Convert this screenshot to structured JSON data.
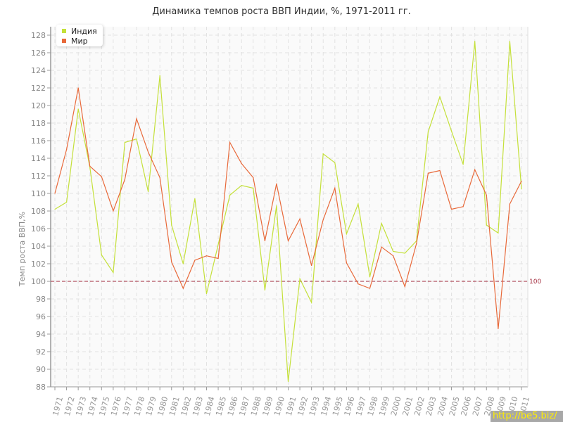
{
  "chart_data": {
    "type": "line",
    "title": "Динамика темпов роста ВВП Индии, %, 1971-2011 гг.",
    "xlabel": "",
    "ylabel": "Темп роста ВВП,%",
    "ylim": [
      88,
      128
    ],
    "ytick_step": 2,
    "grid": true,
    "legend_position": "top-left",
    "x": [
      1971,
      1972,
      1973,
      1974,
      1975,
      1976,
      1977,
      1978,
      1979,
      1980,
      1981,
      1982,
      1983,
      1984,
      1985,
      1986,
      1987,
      1988,
      1989,
      1990,
      1991,
      1992,
      1993,
      1994,
      1995,
      1996,
      1997,
      1998,
      1999,
      2000,
      2001,
      2002,
      2003,
      2004,
      2005,
      2006,
      2007,
      2008,
      2009,
      2010,
      2011
    ],
    "series": [
      {
        "name": "Индия",
        "color": "#c4e03a",
        "values": [
          108.2,
          109.0,
          119.6,
          113.0,
          103.0,
          101.0,
          115.8,
          116.2,
          110.2,
          123.4,
          106.4,
          102.0,
          109.4,
          98.6,
          104.2,
          109.8,
          110.9,
          110.6,
          99.0,
          108.6,
          88.6,
          100.3,
          97.6,
          114.5,
          113.5,
          105.4,
          108.8,
          100.5,
          106.6,
          103.4,
          103.2,
          104.6,
          117.0,
          121.0,
          117.1,
          113.3,
          127.3,
          106.4,
          105.5,
          127.3,
          110.5
        ]
      },
      {
        "name": "Мир",
        "color": "#e8693a",
        "values": [
          110.0,
          115.0,
          122.0,
          113.1,
          111.9,
          108.0,
          111.6,
          118.5,
          114.7,
          111.8,
          102.2,
          99.2,
          102.4,
          102.9,
          102.6,
          115.8,
          113.4,
          111.8,
          104.6,
          111.1,
          104.6,
          107.1,
          101.8,
          107.0,
          110.6,
          102.1,
          99.7,
          99.2,
          103.9,
          102.9,
          99.4,
          104.3,
          112.3,
          112.6,
          108.2,
          108.5,
          112.7,
          109.8,
          94.6,
          108.8,
          111.4
        ]
      }
    ],
    "reference_line": {
      "value": 100,
      "label": "100",
      "color": "#a0283a"
    }
  },
  "watermark": "http://be5.biz/"
}
